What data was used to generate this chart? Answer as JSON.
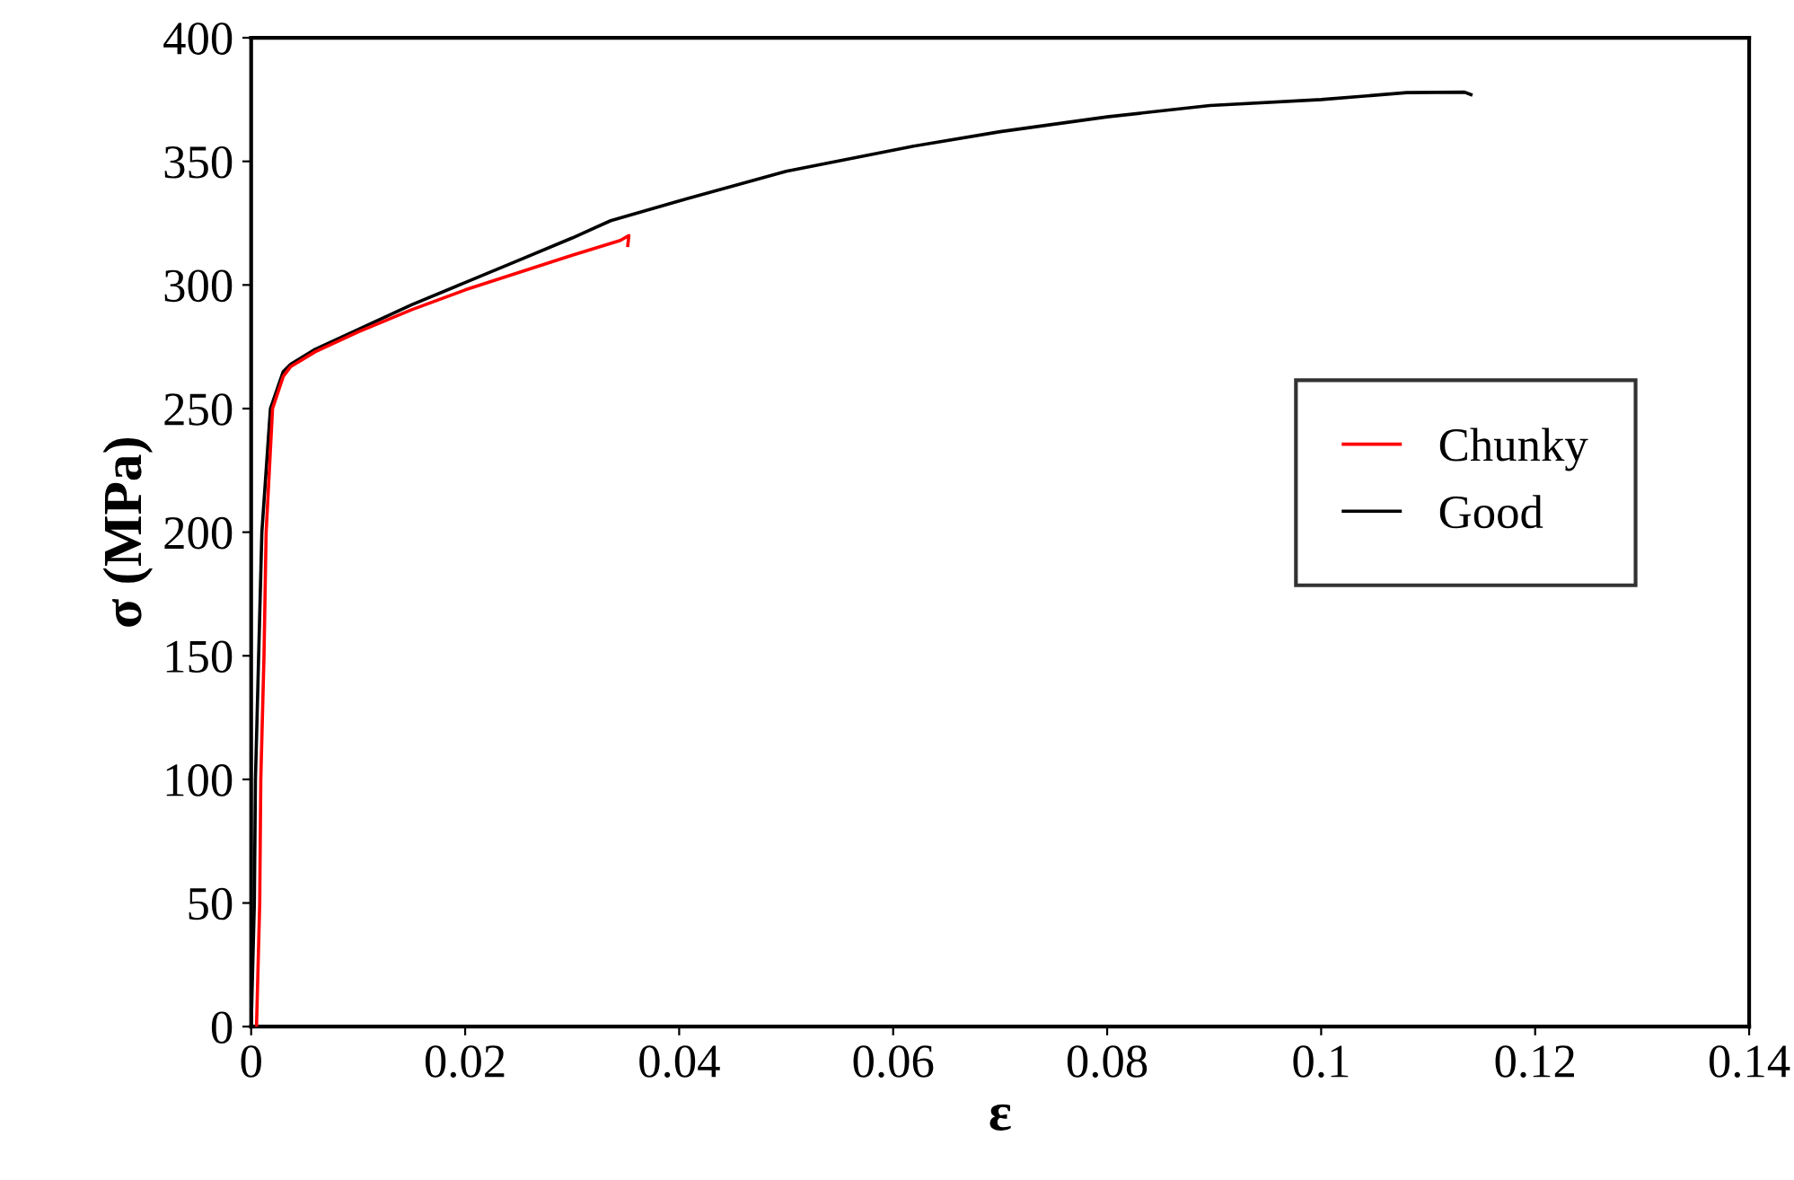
{
  "chart_data": {
    "type": "line",
    "xlabel": "ε",
    "ylabel": "σ (MPa)",
    "xlim": [
      0,
      0.14
    ],
    "ylim": [
      0,
      400
    ],
    "xticks": [
      0,
      0.02,
      0.04,
      0.06,
      0.08,
      0.1,
      0.12,
      0.14
    ],
    "yticks": [
      0,
      50,
      100,
      150,
      200,
      250,
      300,
      350,
      400
    ],
    "grid": false,
    "legend": "right",
    "marker": "none",
    "line_style": "solid",
    "series": [
      {
        "name": "Chunky",
        "color": "#ff0000",
        "x": [
          0.0005,
          0.0008,
          0.0009,
          0.0012,
          0.0014,
          0.002,
          0.003,
          0.0037,
          0.006,
          0.01,
          0.015,
          0.02,
          0.025,
          0.03,
          0.0345,
          0.0353,
          0.0352
        ],
        "values": [
          0,
          50,
          100,
          150,
          200,
          250,
          263,
          267,
          273,
          281,
          290,
          298,
          305,
          312,
          318,
          320,
          316
        ]
      },
      {
        "name": "Good",
        "color": "#000000",
        "x": [
          0,
          0.0003,
          0.0004,
          0.0007,
          0.001,
          0.0018,
          0.003,
          0.0037,
          0.006,
          0.01,
          0.015,
          0.02,
          0.025,
          0.03,
          0.0336,
          0.04,
          0.05,
          0.0617,
          0.07,
          0.08,
          0.0896,
          0.1,
          0.108,
          0.1134,
          0.114
        ],
        "values": [
          0,
          50,
          100,
          150,
          200,
          250,
          265,
          268,
          274,
          282,
          292,
          301,
          310,
          319,
          326,
          334,
          346,
          356,
          362,
          368,
          372.6,
          375,
          377.8,
          378,
          377
        ]
      }
    ]
  }
}
